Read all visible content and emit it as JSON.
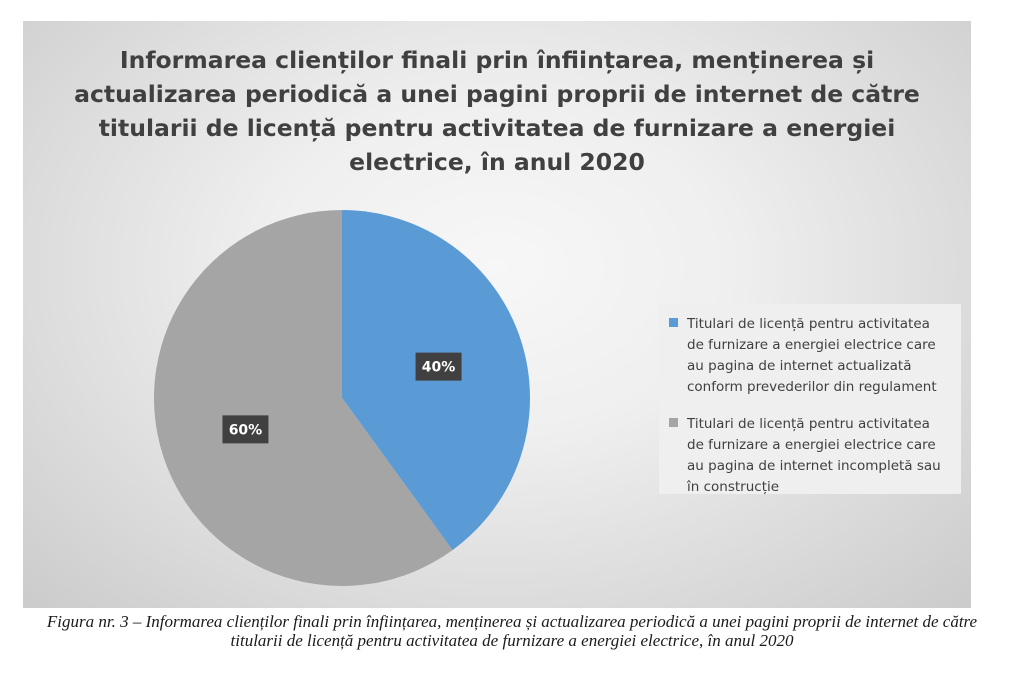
{
  "colors": {
    "blue": "#5b9bd5",
    "gray": "#a5a5a5",
    "label_bg": "#404040"
  },
  "chart_data": {
    "type": "pie",
    "title": "Informarea clienților finali prin înființarea, menținerea și actualizarea periodică a unei pagini proprii de internet de către titularii de licență pentru activitatea de furnizare a energiei electrice, în anul 2020",
    "categories": [
      "Titulari de licență pentru activitatea de furnizare a energiei electrice care au pagina de internet actualizată conform prevederilor din regulament",
      "Titulari de licență pentru activitatea de furnizare a energiei electrice care au pagina de internet incompletă sau în construcție"
    ],
    "values": [
      40,
      60
    ],
    "data_labels": [
      "40%",
      "60%"
    ],
    "legend_position": "right"
  },
  "caption": "Figura nr. 3 – Informarea clienților finali prin înființarea, menținerea și actualizarea periodică a unei pagini proprii de internet de către titularii de licență pentru activitatea de furnizare a energiei electrice, în anul 2020"
}
